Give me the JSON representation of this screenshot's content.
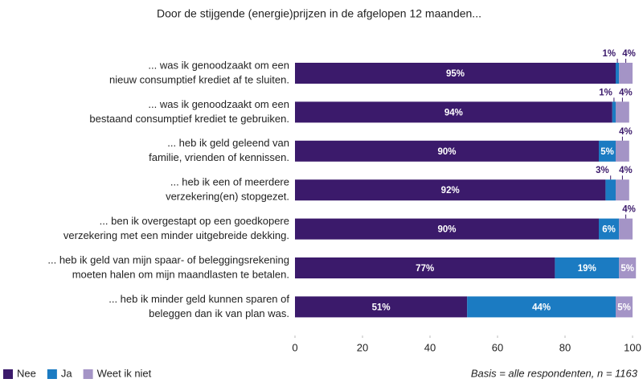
{
  "chart_data": {
    "type": "stacked-bar-horizontal",
    "title": "Door de stijgende (energie)prijzen in de afgelopen 12 maanden...",
    "note": "Basis = alle respondenten, n = 1163",
    "categories": [
      [
        "... was ik genoodzaakt om een",
        "nieuw consumptief krediet af te sluiten."
      ],
      [
        "... was ik genoodzaakt om een",
        "bestaand consumptief krediet te gebruiken."
      ],
      [
        "... heb ik geld geleend van",
        "familie, vrienden of kennissen."
      ],
      [
        "... heb ik een of meerdere",
        "verzekering(en) stopgezet."
      ],
      [
        "... ben ik overgestapt op een goedkopere",
        "verzekering met een minder uitgebreide dekking."
      ],
      [
        "... heb ik geld van mijn spaar- of beleggingsrekening",
        "moeten halen om mijn maandlasten te betalen."
      ],
      [
        "... heb ik minder geld kunnen sparen of",
        "beleggen dan ik van plan was."
      ]
    ],
    "series": [
      {
        "name": "Nee",
        "color": "#3b1a6b",
        "values": [
          95,
          94,
          90,
          92,
          90,
          77,
          51
        ],
        "value_labels": [
          "95%",
          "94%",
          "90%",
          "92%",
          "90%",
          "77%",
          "51%"
        ]
      },
      {
        "name": "Ja",
        "color": "#1b7bc2",
        "values": [
          1,
          1,
          5,
          3,
          6,
          19,
          44
        ],
        "value_labels": [
          "1%",
          "1%",
          "5%",
          "3%",
          "6%",
          "19%",
          "44%"
        ]
      },
      {
        "name": "Weet ik niet",
        "color": "#a494c6",
        "values": [
          4,
          4,
          4,
          4,
          4,
          5,
          5
        ],
        "value_labels": [
          "4%",
          "4%",
          "4%",
          "4%",
          "4%",
          "5%",
          "5%"
        ]
      }
    ],
    "xlim": [
      0,
      100
    ],
    "xticks": [
      0,
      20,
      40,
      60,
      80,
      100
    ]
  }
}
